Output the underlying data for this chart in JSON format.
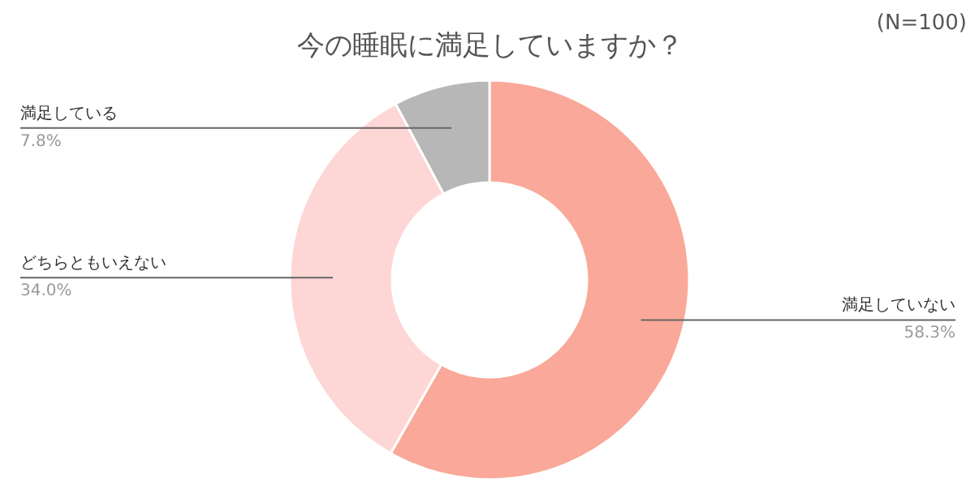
{
  "chart_data": {
    "type": "donut",
    "title": "今の睡眠に満足していますか？",
    "annotations": [
      "(N=100)"
    ],
    "categories": [
      "満足していない",
      "どちらともいえない",
      "満足している"
    ],
    "values": [
      58.3,
      34.0,
      7.8
    ],
    "colors": [
      "#f9a899",
      "#fdd6d5",
      "#b7b7b7"
    ],
    "value_labels": [
      "58.3%",
      "34.0%",
      "7.8%"
    ]
  }
}
